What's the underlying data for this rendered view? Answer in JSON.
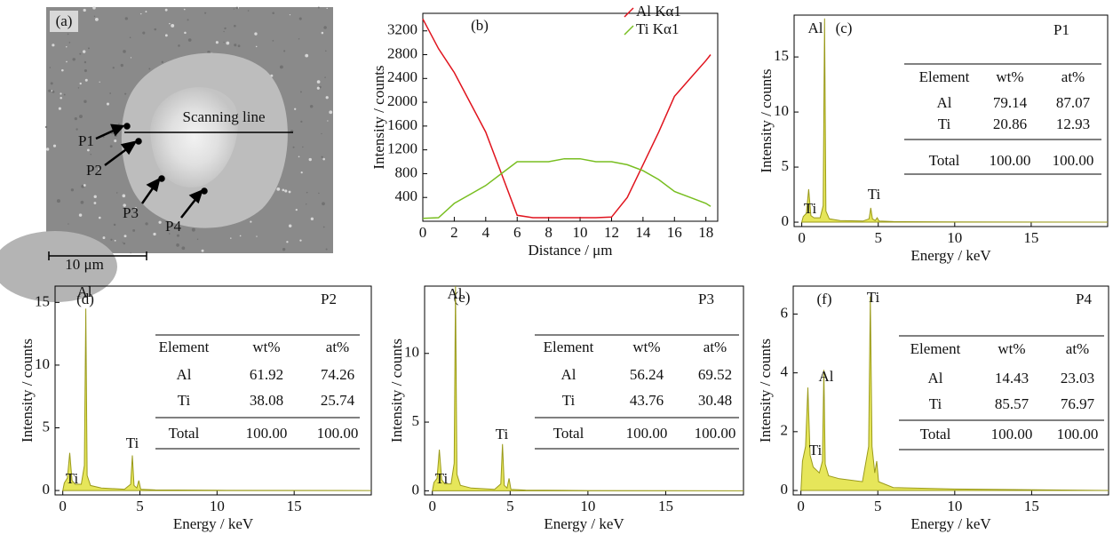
{
  "image_panel": {
    "label": "(a)",
    "points": [
      "P1",
      "P2",
      "P3",
      "P4"
    ],
    "line_label": "Scanning line",
    "scale_bar": "10 μm"
  },
  "chart_data": [
    {
      "type": "line",
      "label": "(b)",
      "x_label": "Distance / μm",
      "y_label": "Intensity / counts",
      "x": [
        0,
        1,
        2,
        3,
        4,
        5,
        6,
        7,
        8,
        9,
        10,
        11,
        12,
        13,
        14,
        15,
        16,
        17,
        18,
        18.3
      ],
      "series": [
        {
          "name": "Al Kα1",
          "color": "#e0141e",
          "values": [
            3400,
            2900,
            2500,
            2000,
            1500,
            800,
            100,
            60,
            60,
            60,
            60,
            60,
            70,
            400,
            950,
            1500,
            2100,
            2400,
            2700,
            2800
          ]
        },
        {
          "name": "Ti Kα1",
          "color": "#78be20",
          "values": [
            50,
            60,
            300,
            450,
            600,
            800,
            1000,
            1000,
            1000,
            1050,
            1050,
            1000,
            1000,
            950,
            850,
            700,
            500,
            400,
            300,
            250
          ]
        }
      ],
      "xlim": [
        0,
        18.3
      ],
      "xticks": [
        0,
        2,
        4,
        6,
        8,
        10,
        12,
        14,
        16,
        18
      ],
      "ylim": [
        0,
        3450
      ],
      "yticks": [
        400,
        800,
        1200,
        1600,
        2000,
        2400,
        2800,
        3200
      ]
    },
    {
      "type": "area",
      "label": "(c)",
      "point": "P1",
      "x_label": "Energy / keV",
      "y_label": "Intensity / counts",
      "color": "#e6e65a",
      "x": [
        0,
        0.1,
        0.3,
        0.45,
        0.6,
        0.8,
        1.2,
        1.4,
        1.49,
        1.58,
        1.8,
        2.5,
        4.0,
        4.4,
        4.51,
        4.62,
        4.8,
        4.93,
        5.05,
        6,
        10,
        20
      ],
      "values": [
        0,
        0.5,
        0.8,
        3.0,
        0.6,
        0.4,
        0.4,
        1.5,
        18.5,
        1.0,
        0.3,
        0.15,
        0.1,
        0.3,
        1.3,
        0.3,
        0.15,
        0.4,
        0.1,
        0.05,
        0.02,
        0
      ],
      "annotations": [
        "Al",
        "Ti",
        "Ti"
      ],
      "xlim": [
        -0.5,
        20
      ],
      "xticks": [
        0,
        5,
        10,
        15
      ],
      "ylim": [
        -0.4,
        18.8
      ],
      "yticks": [
        0,
        5,
        10,
        15
      ],
      "table": {
        "header": [
          "Element",
          "wt%",
          "at%"
        ],
        "rows": [
          [
            "Al",
            "79.14",
            "87.07"
          ],
          [
            "Ti",
            "20.86",
            "12.93"
          ],
          [
            "Total",
            "100.00",
            "100.00"
          ]
        ]
      }
    },
    {
      "type": "area",
      "label": "(d)",
      "point": "P2",
      "x_label": "Energy / keV",
      "y_label": "Intensity / counts",
      "color": "#e6e65a",
      "x": [
        0,
        0.1,
        0.3,
        0.45,
        0.6,
        0.8,
        1.2,
        1.4,
        1.49,
        1.58,
        1.8,
        2.5,
        4.0,
        4.4,
        4.51,
        4.62,
        4.8,
        4.93,
        5.05,
        6,
        10,
        20
      ],
      "values": [
        0,
        0.6,
        1.0,
        3.0,
        0.8,
        0.5,
        0.5,
        2,
        14.5,
        1.2,
        0.4,
        0.2,
        0.1,
        0.5,
        2.8,
        0.4,
        0.2,
        0.8,
        0.1,
        0.05,
        0.02,
        0
      ],
      "annotations": [
        "Al",
        "Ti",
        "Ti"
      ],
      "xlim": [
        -0.5,
        20
      ],
      "xticks": [
        0,
        5,
        10,
        15
      ],
      "ylim": [
        -0.35,
        16.3
      ],
      "yticks": [
        0,
        5,
        10,
        15
      ],
      "table": {
        "header": [
          "Element",
          "wt%",
          "at%"
        ],
        "rows": [
          [
            "Al",
            "61.92",
            "74.26"
          ],
          [
            "Ti",
            "38.08",
            "25.74"
          ],
          [
            "Total",
            "100.00",
            "100.00"
          ]
        ]
      }
    },
    {
      "type": "area",
      "label": "(e)",
      "point": "P3",
      "x_label": "Energy / keV",
      "y_label": "Intensity / counts",
      "color": "#e6e65a",
      "x": [
        0,
        0.1,
        0.3,
        0.45,
        0.6,
        0.8,
        1.2,
        1.4,
        1.49,
        1.58,
        1.8,
        2.5,
        4.0,
        4.4,
        4.51,
        4.62,
        4.8,
        4.93,
        5.05,
        6,
        10,
        20
      ],
      "values": [
        0,
        0.6,
        0.9,
        3.0,
        0.8,
        0.5,
        0.5,
        2,
        14.9,
        1.2,
        0.4,
        0.2,
        0.1,
        0.5,
        3.4,
        0.4,
        0.2,
        0.9,
        0.1,
        0.05,
        0.02,
        0
      ],
      "annotations": [
        "Al",
        "Ti",
        "Ti"
      ],
      "xlim": [
        -0.5,
        20
      ],
      "xticks": [
        0,
        5,
        10,
        15
      ],
      "ylim": [
        -0.3,
        14.9
      ],
      "yticks": [
        0,
        5,
        10
      ],
      "table": {
        "header": [
          "Element",
          "wt%",
          "at%"
        ],
        "rows": [
          [
            "Al",
            "56.24",
            "69.52"
          ],
          [
            "Ti",
            "43.76",
            "30.48"
          ],
          [
            "Total",
            "100.00",
            "100.00"
          ]
        ]
      }
    },
    {
      "type": "area",
      "label": "(f)",
      "point": "P4",
      "x_label": "Energy / keV",
      "y_label": "Intensity / counts",
      "color": "#e6e65a",
      "x": [
        0,
        0.1,
        0.3,
        0.45,
        0.6,
        0.8,
        1.2,
        1.4,
        1.49,
        1.58,
        1.8,
        2.5,
        4.0,
        4.4,
        4.51,
        4.62,
        4.8,
        4.93,
        5.05,
        6,
        10,
        20
      ],
      "values": [
        0,
        1.0,
        1.5,
        3.5,
        1.2,
        0.8,
        0.6,
        1,
        4.1,
        0.9,
        0.5,
        0.4,
        0.3,
        1.5,
        6.6,
        1.5,
        0.6,
        1.0,
        0.3,
        0.1,
        0.05,
        0
      ],
      "annotations": [
        "Ti",
        "Al",
        "Ti"
      ],
      "xlim": [
        -0.5,
        20
      ],
      "xticks": [
        0,
        5,
        10,
        15
      ],
      "ylim": [
        -0.15,
        6.95
      ],
      "yticks": [
        0,
        2,
        4,
        6
      ],
      "table": {
        "header": [
          "Element",
          "wt%",
          "at%"
        ],
        "rows": [
          [
            "Al",
            "14.43",
            "23.03"
          ],
          [
            "Ti",
            "85.57",
            "76.97"
          ],
          [
            "Total",
            "100.00",
            "100.00"
          ]
        ]
      }
    }
  ]
}
